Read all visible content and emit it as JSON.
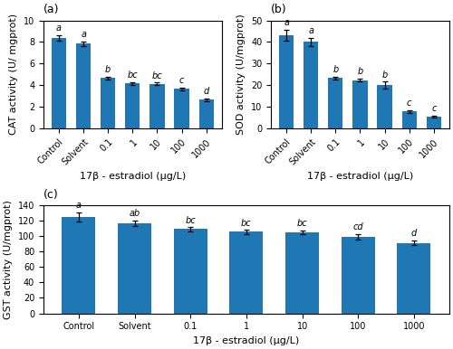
{
  "chart_data": [
    {
      "type": "bar",
      "title": "(a)",
      "categories": [
        "Control",
        "Solvent",
        "0.1",
        "1",
        "10",
        "100",
        "1000"
      ],
      "values": [
        8.4,
        7.85,
        4.65,
        4.15,
        4.12,
        3.65,
        2.65
      ],
      "errors": [
        0.25,
        0.22,
        0.12,
        0.12,
        0.12,
        0.1,
        0.1
      ],
      "annotations": [
        "a",
        "a",
        "b",
        "bc",
        "bc",
        "c",
        "d"
      ],
      "x_label": "17β - estradiol (μg/L)",
      "y_label": "CAT activity (U/ mgprot)",
      "ylim": [
        0,
        10
      ],
      "yticks": [
        0,
        2,
        4,
        6,
        8,
        10
      ],
      "grid": false
    },
    {
      "type": "bar",
      "title": "(b)",
      "categories": [
        "Control",
        "Solvent",
        "0.1",
        "1",
        "10",
        "100",
        "1000"
      ],
      "values": [
        43.2,
        40.0,
        23.3,
        22.4,
        20.1,
        7.8,
        5.5
      ],
      "errors": [
        2.5,
        1.8,
        0.7,
        0.7,
        1.5,
        0.5,
        0.5
      ],
      "annotations": [
        "a",
        "a",
        "b",
        "b",
        "b",
        "c",
        "c"
      ],
      "x_label": "17β - estradiol (μg/L)",
      "y_label": "SOD activity (U/mgprot)",
      "ylim": [
        0,
        50
      ],
      "yticks": [
        0,
        10,
        20,
        30,
        40,
        50
      ],
      "grid": false
    },
    {
      "type": "bar",
      "title": "(c)",
      "categories": [
        "Control",
        "Solvent",
        "0.1",
        "1",
        "10",
        "100",
        "1000"
      ],
      "values": [
        125.0,
        117.0,
        109.0,
        105.5,
        104.5,
        99.0,
        91.0
      ],
      "errors": [
        6.0,
        3.5,
        2.5,
        2.5,
        2.5,
        3.5,
        3.0
      ],
      "annotations": [
        "a",
        "ab",
        "bc",
        "bc",
        "bc",
        "cd",
        "d"
      ],
      "x_label": "17β - estradiol (μg/L)",
      "y_label": "GST activity (U/mgprot)",
      "ylim": [
        0,
        140
      ],
      "yticks": [
        0,
        20,
        40,
        60,
        80,
        100,
        120,
        140
      ],
      "grid": false
    }
  ]
}
